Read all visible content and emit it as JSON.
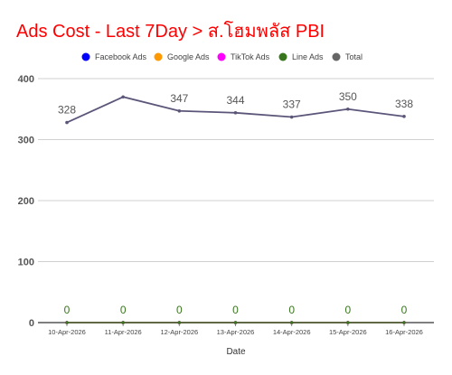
{
  "chart_data": {
    "type": "line",
    "title": "Ads Cost - Last 7Day > ส.โฮมพลัส PBI",
    "xlabel": "Date",
    "ylabel": "",
    "ylim": [
      0,
      400
    ],
    "yticks": [
      0,
      100,
      200,
      300,
      400
    ],
    "grid": true,
    "legend_position": "top",
    "categories": [
      "10-Apr-2026",
      "11-Apr-2026",
      "12-Apr-2026",
      "13-Apr-2026",
      "14-Apr-2026",
      "15-Apr-2026",
      "16-Apr-2026"
    ],
    "series": [
      {
        "name": "Facebook Ads",
        "color": "#0000ff",
        "values": [
          0,
          0,
          0,
          0,
          0,
          0,
          0
        ],
        "show_labels": false
      },
      {
        "name": "Google Ads",
        "color": "#ff9900",
        "values": [
          0,
          0,
          0,
          0,
          0,
          0,
          0
        ],
        "show_labels": false
      },
      {
        "name": "TikTok Ads",
        "color": "#ff00ff",
        "values": [
          0,
          0,
          0,
          0,
          0,
          0,
          0
        ],
        "show_labels": false
      },
      {
        "name": "Line Ads",
        "color": "#38761d",
        "values": [
          0,
          0,
          0,
          0,
          0,
          0,
          0
        ],
        "show_labels": true,
        "label_color": "#38761d"
      },
      {
        "name": "Total",
        "color": "#666666",
        "line_color": "#5b5679",
        "values": [
          328,
          370,
          347,
          344,
          337,
          350,
          338
        ],
        "labels": [
          "328",
          "",
          "347",
          "344",
          "337",
          "350",
          "338"
        ],
        "show_labels": true,
        "label_color": "#555555"
      }
    ]
  }
}
